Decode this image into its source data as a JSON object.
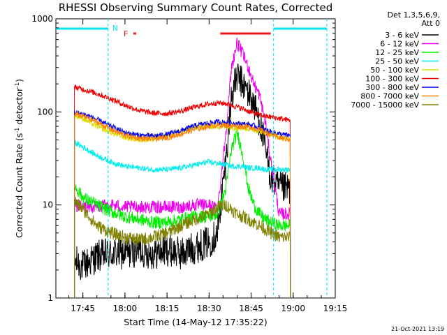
{
  "chart_data": {
    "type": "line",
    "title": "RHESSI Observing Summary Count Rates, Corrected",
    "xlabel": "Start Time (14-May-12 17:35:22)",
    "ylabel": "Corrected Count Rate (s⁻¹ detector⁻¹)",
    "ylabel_parts": {
      "main": "Corrected Count Rate (s",
      "exp1": "-1",
      "mid": " detector",
      "exp2": "-1",
      "end": ")"
    },
    "y_scale": "log",
    "ylim": [
      1,
      1000
    ],
    "xlim": [
      "17:35:22",
      "19:15"
    ],
    "x_ticks": [
      "17:45",
      "18:00",
      "18:15",
      "18:30",
      "18:45",
      "19:00",
      "19:15"
    ],
    "y_ticks": [
      "1",
      "10",
      "100",
      "1000"
    ],
    "legend_header": [
      "Det 1,3,5,6,9,",
      "Att 0"
    ],
    "legend_position": "right",
    "footer_date": "21-Oct-2021 13:19",
    "annotations": {
      "night_marker": "N",
      "night_color": "#00e5ee",
      "night_bars": [
        [
          "17:35",
          "17:54"
        ],
        [
          "18:53",
          "19:12"
        ]
      ],
      "night_lines": [
        "17:54",
        "18:53",
        "19:12"
      ],
      "flare_marker": "F",
      "flare_color": "#e8141e",
      "flare_bars": [
        [
          "18:03",
          "18:04"
        ],
        [
          "18:34",
          "18:52"
        ]
      ]
    },
    "x": [
      "17:42",
      "17:45",
      "17:50",
      "17:55",
      "18:00",
      "18:05",
      "18:10",
      "18:15",
      "18:20",
      "18:25",
      "18:30",
      "18:33",
      "18:36",
      "18:38",
      "18:40",
      "18:42",
      "18:44",
      "18:46",
      "18:48",
      "18:50",
      "18:52",
      "18:55",
      "18:58",
      "18:59"
    ],
    "series": [
      {
        "name": "3 - 6 keV",
        "color": "#000000",
        "values": [
          2.5,
          2.2,
          2.8,
          3.0,
          3.0,
          3.3,
          3.0,
          3.3,
          3.0,
          3.5,
          4.0,
          5.0,
          30,
          150,
          240,
          200,
          160,
          120,
          80,
          40,
          20,
          15,
          15,
          15
        ]
      },
      {
        "name": "6 - 12 keV",
        "color": "#ee00ee",
        "values": [
          10,
          9.5,
          9.5,
          10,
          9.5,
          9.5,
          9.5,
          9.5,
          9.5,
          10,
          10,
          9,
          60,
          300,
          550,
          420,
          300,
          200,
          150,
          80,
          30,
          8,
          8,
          8
        ]
      },
      {
        "name": "12 - 25 keV",
        "color": "#00ee00",
        "values": [
          16,
          12,
          10,
          8.5,
          7.5,
          7.0,
          6.5,
          6.5,
          7.0,
          7.5,
          7.5,
          8,
          15,
          40,
          60,
          35,
          15,
          10,
          8,
          7,
          6.5,
          6,
          6,
          6
        ]
      },
      {
        "name": "25 - 50 keV",
        "color": "#00eeee",
        "values": [
          47,
          42,
          34,
          29,
          26,
          25,
          24,
          24,
          25,
          27,
          29,
          28,
          27,
          26,
          26,
          26,
          25,
          25,
          25,
          24,
          24,
          24,
          24,
          24
        ]
      },
      {
        "name": "50 - 100 keV",
        "color": "#dddd00",
        "values": [
          92,
          85,
          70,
          60,
          53,
          50,
          51,
          55,
          62,
          68,
          70,
          70,
          69,
          68,
          67,
          67,
          66,
          64,
          62,
          60,
          58,
          53,
          51,
          51
        ]
      },
      {
        "name": "100 - 300 keV",
        "color": "#ee0000",
        "values": [
          185,
          175,
          158,
          138,
          118,
          104,
          97,
          96,
          102,
          113,
          122,
          125,
          123,
          118,
          113,
          108,
          102,
          97,
          93,
          90,
          88,
          85,
          82,
          82
        ]
      },
      {
        "name": "300 - 800 keV",
        "color": "#0000ee",
        "values": [
          98,
          95,
          83,
          70,
          60,
          56,
          55,
          57,
          63,
          71,
          76,
          78,
          77,
          76,
          75,
          74,
          73,
          71,
          68,
          64,
          61,
          58,
          56,
          56
        ]
      },
      {
        "name": "800 - 7000 keV",
        "color": "#ff8000",
        "values": [
          95,
          90,
          78,
          65,
          56,
          52,
          51,
          53,
          58,
          65,
          70,
          72,
          72,
          71,
          70,
          70,
          69,
          67,
          64,
          61,
          57,
          53,
          51,
          51
        ]
      },
      {
        "name": "7000 - 15000 keV",
        "color": "#808000",
        "values": [
          11,
          9,
          6,
          5,
          4.5,
          4.2,
          4.5,
          5,
          6,
          7,
          8,
          9.5,
          10,
          9,
          8,
          7.5,
          7,
          6.5,
          6,
          5.5,
          5,
          4.5,
          4.5,
          4.5
        ]
      }
    ]
  }
}
